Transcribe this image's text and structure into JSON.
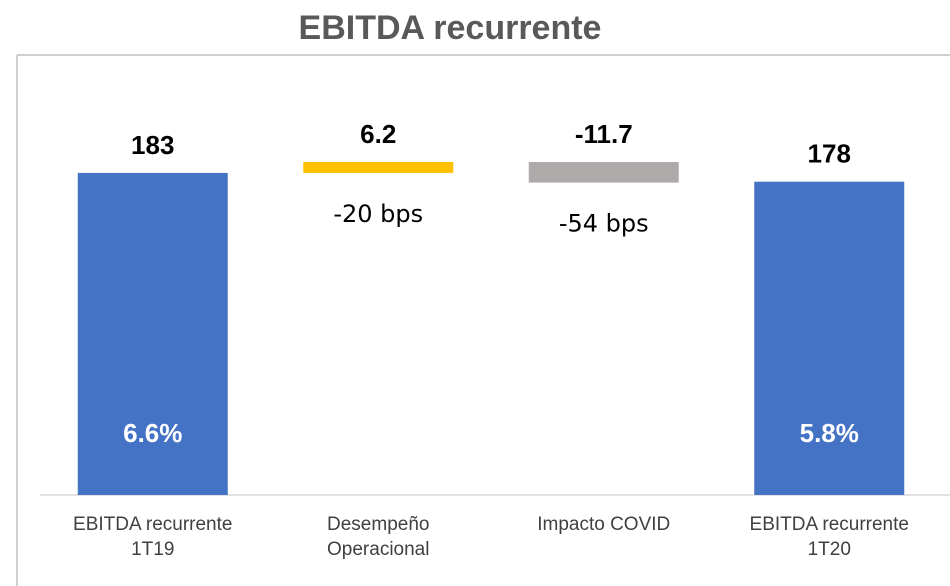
{
  "chart_data": {
    "type": "waterfall",
    "title": "EBITDA  recurrente",
    "categories": [
      [
        "EBITDA recurrente",
        "1T19"
      ],
      [
        "Desempeño",
        "Operacional"
      ],
      [
        "Impacto COVID"
      ],
      [
        "EBITDA  recurrente",
        "1T20"
      ]
    ],
    "values": [
      183,
      6.2,
      -11.7,
      178
    ],
    "totals": [
      true,
      false,
      false,
      true
    ],
    "colors": [
      "#4472c4",
      "#ffc000",
      "#aeaaaa",
      "#4472c4"
    ],
    "annotations": [
      "6.6%",
      "-20 bps",
      "-54 bps",
      "5.8%"
    ]
  }
}
